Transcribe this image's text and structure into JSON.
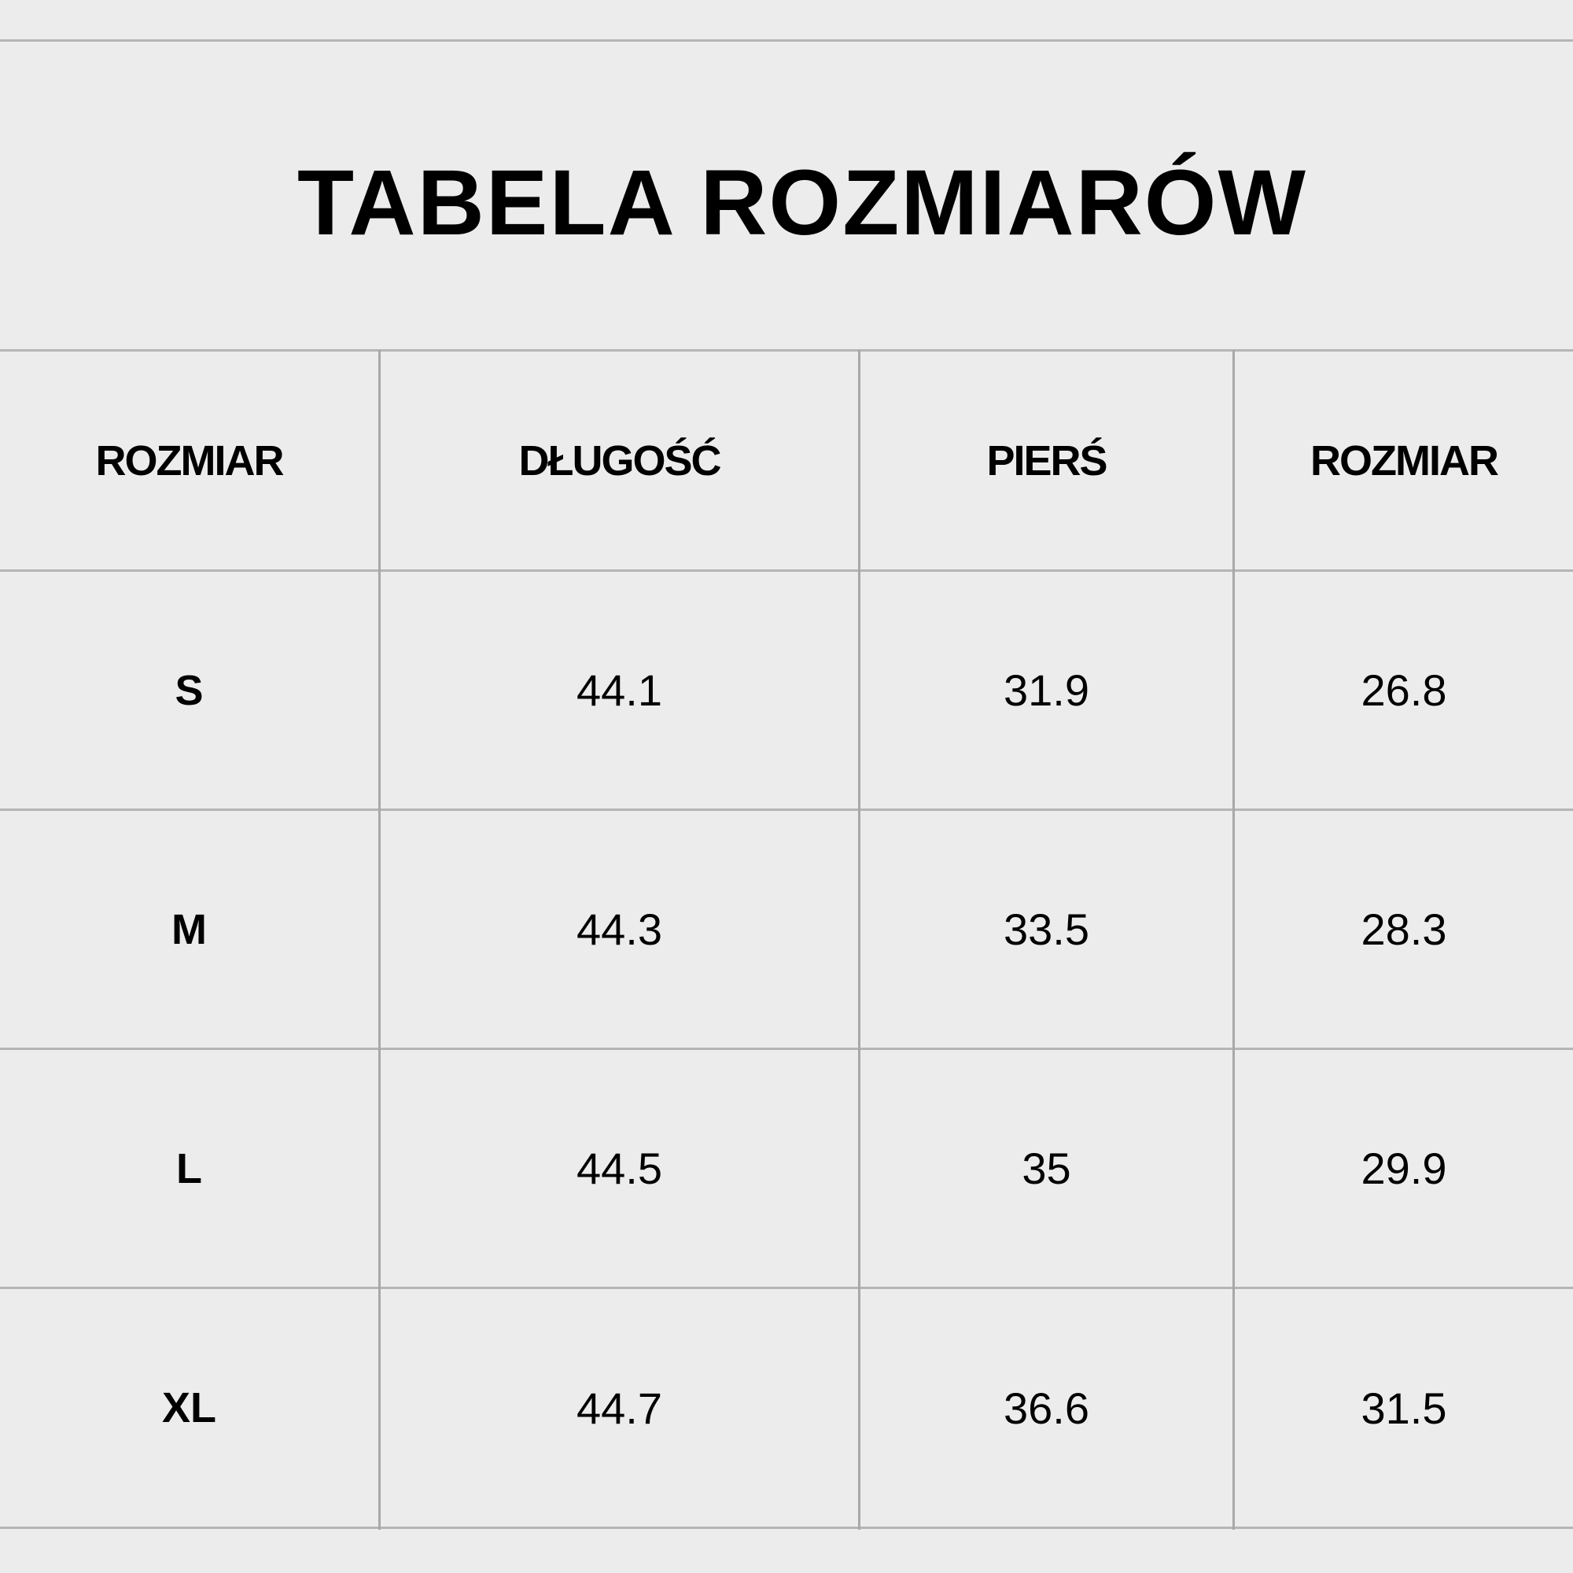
{
  "title": "TABELA ROZMIARÓW",
  "headers": [
    "ROZMIAR",
    "DŁUGOŚĆ",
    "PIERŚ",
    "ROZMIAR"
  ],
  "rows": [
    [
      "S",
      "44.1",
      "31.9",
      "26.8"
    ],
    [
      "M",
      "44.3",
      "33.5",
      "28.3"
    ],
    [
      "L",
      "44.5",
      "35",
      "29.9"
    ],
    [
      "XL",
      "44.7",
      "36.6",
      "31.5"
    ]
  ]
}
